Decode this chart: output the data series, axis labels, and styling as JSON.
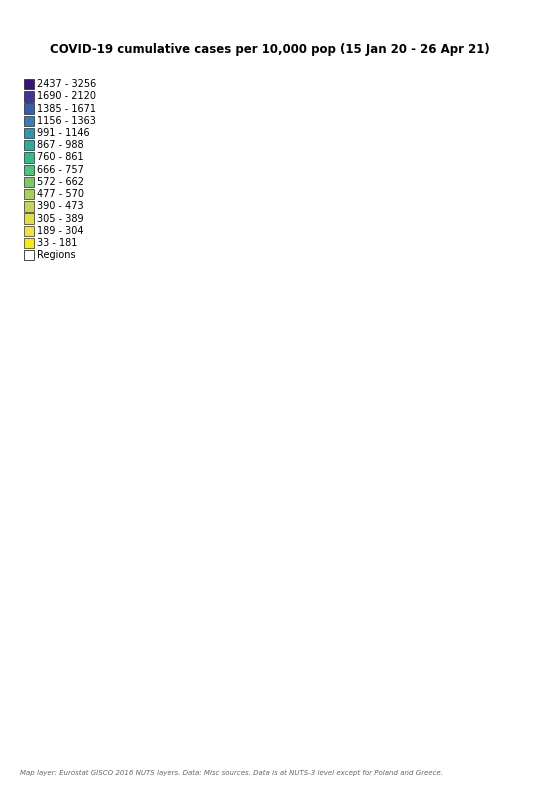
{
  "title": "COVID-19 cumulative cases per 10,000 pop (15 Jan 20 - 26 Apr 21)",
  "legend_labels": [
    "2437 - 3256",
    "1690 - 2120",
    "1385 - 1671",
    "1156 - 1363",
    "991 - 1146",
    "867 - 988",
    "760 - 861",
    "666 - 757",
    "572 - 662",
    "477 - 570",
    "390 - 473",
    "305 - 389",
    "189 - 304",
    "33 - 181"
  ],
  "legend_colors": [
    "#3B1278",
    "#3F3896",
    "#3D5DA8",
    "#3A7CB8",
    "#3295B0",
    "#2AADA0",
    "#33BB8C",
    "#55C07A",
    "#7FC86A",
    "#A8CE5E",
    "#C8D35A",
    "#E0DA55",
    "#F0E04A",
    "#F5E920"
  ],
  "regions_color": "#FFFFFF",
  "regions_label": "Regions",
  "footer": "Map layer: Eurostat GISCO 2016 NUTS layers. Data: Misc sources. Data is at NUTS-3 level except for Poland and Greece.",
  "background_color": "#FFFFFF",
  "title_fontsize": 8.5,
  "legend_fontsize": 7.0,
  "footer_fontsize": 5.0,
  "country_colors": {
    "Norway": "#F5E920",
    "Sweden": "#3A7CB8",
    "Finland": "#F5E920",
    "Denmark": "#55C07A",
    "Iceland": "#F5E920",
    "United Kingdom": "#7FC86A",
    "Ireland": "#7FC86A",
    "France": "#7FC86A",
    "Spain": "#A8CE5E",
    "Portugal": "#A8CE5E",
    "Germany": "#55C07A",
    "Netherlands": "#55C07A",
    "Belgium": "#55C07A",
    "Luxembourg": "#55C07A",
    "Switzerland": "#33BB8C",
    "Austria": "#33BB8C",
    "Italy": "#55C07A",
    "Poland": "#7FC86A",
    "Czech Republic": "#3F3896",
    "Slovakia": "#3A7CB8",
    "Hungary": "#3A7CB8",
    "Romania": "#7FC86A",
    "Bulgaria": "#7FC86A",
    "Greece": "#A8CE5E",
    "Croatia": "#3295B0",
    "Slovenia": "#3295B0",
    "Serbia": "#3295B0",
    "Bosnia and Herzegovina": "#3295B0",
    "Montenegro": "#3295B0",
    "North Macedonia": "#3295B0",
    "Albania": "#3295B0",
    "Estonia": "#55C07A",
    "Latvia": "#55C07A",
    "Lithuania": "#55C07A",
    "Belarus": "#7FC86A",
    "Ukraine": "#7FC86A",
    "Moldova": "#7FC86A",
    "Russia": "#F5E920",
    "Turkey": "#A8CE5E",
    "Cyprus": "#A8CE5E",
    "Malta": "#3A7CB8",
    "Kosovo": "#3295B0"
  }
}
